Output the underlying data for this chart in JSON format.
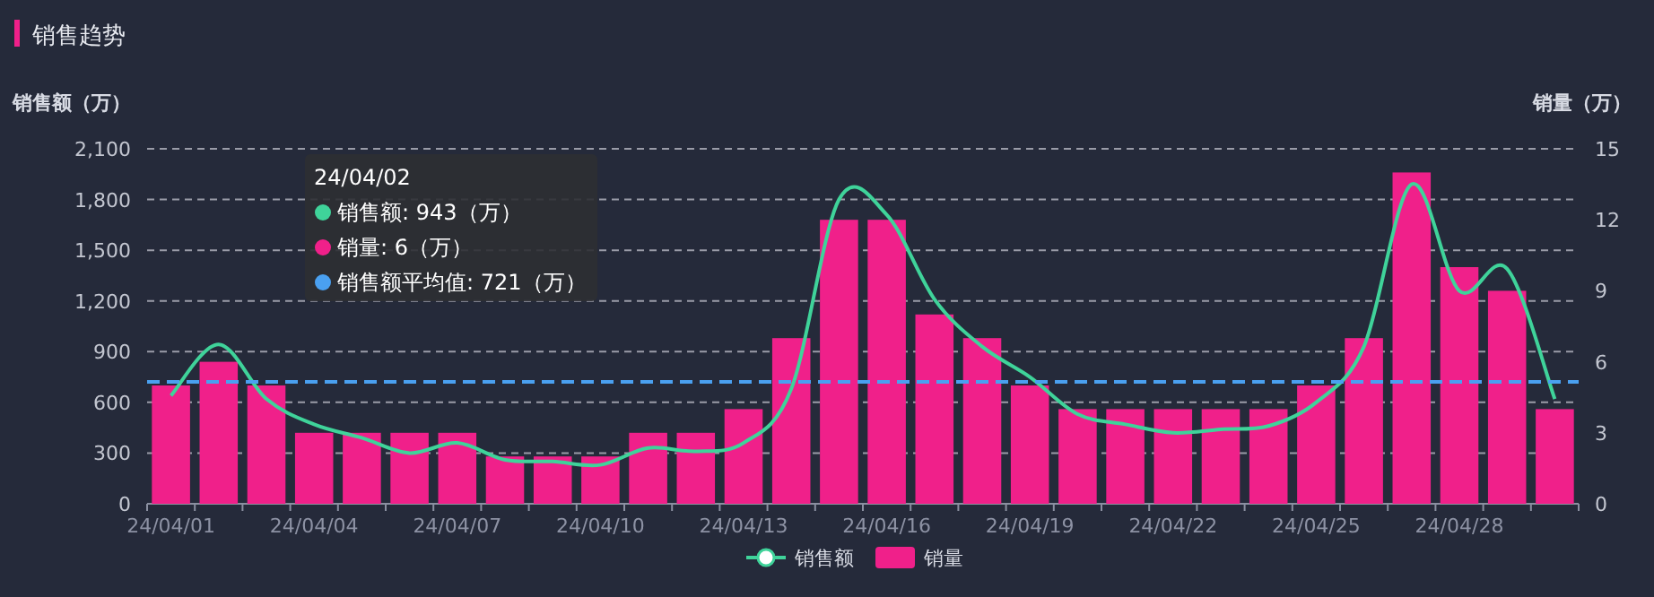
{
  "chart_data": {
    "type": "bar",
    "title": "销售趋势",
    "ylabel": "销售额（万）",
    "y2label": "销量（万）",
    "categories": [
      "24/04/01",
      null,
      null,
      "24/04/04",
      null,
      null,
      "24/04/07",
      null,
      null,
      "24/04/10",
      null,
      null,
      "24/04/13",
      null,
      null,
      "24/04/16",
      null,
      null,
      "24/04/19",
      null,
      null,
      "24/04/22",
      null,
      null,
      "24/04/25",
      null,
      null,
      "24/04/28",
      null,
      null
    ],
    "series": [
      {
        "name": "销售额",
        "type": "line",
        "color": "#3fd39a",
        "values": [
          640,
          943,
          620,
          470,
          390,
          300,
          360,
          260,
          250,
          230,
          330,
          310,
          360,
          680,
          1800,
          1710,
          1210,
          930,
          750,
          530,
          470,
          420,
          440,
          460,
          600,
          930,
          1890,
          1260,
          1390,
          620
        ]
      },
      {
        "name": "销量",
        "axis": "y2",
        "color": "#f0208a",
        "values": [
          5,
          6,
          5,
          3,
          3,
          3,
          3,
          2,
          2,
          2,
          3,
          3,
          4,
          7,
          12,
          12,
          8,
          7,
          5,
          4,
          4,
          4,
          4,
          4,
          5,
          7,
          14,
          10,
          9,
          4
        ]
      }
    ],
    "ylim": [
      0,
      2100
    ],
    "yticks": [
      0,
      {
        "value": 300,
        "label": "300"
      },
      {
        "value": 600,
        "label": "600"
      },
      {
        "value": 900,
        "label": "900"
      },
      {
        "value": 1200,
        "label": "1,200"
      },
      {
        "value": 1500,
        "label": "1,500"
      },
      {
        "value": 1800,
        "label": "1,800"
      },
      {
        "value": 2100,
        "label": "2,100"
      }
    ],
    "y2lim": [
      0,
      15
    ],
    "y2ticks": [
      0,
      3,
      6,
      9,
      12,
      15
    ],
    "ref_lines": [
      {
        "axis": "y",
        "value": 721,
        "color": "#4aa0f0",
        "line_style": "dashed"
      }
    ],
    "annotations": [
      "24/04/02",
      "销售额: 943（万）",
      "销量: 6（万）",
      "销售额平均值: 721（万）"
    ],
    "grid": "y",
    "legend": "bottom"
  }
}
